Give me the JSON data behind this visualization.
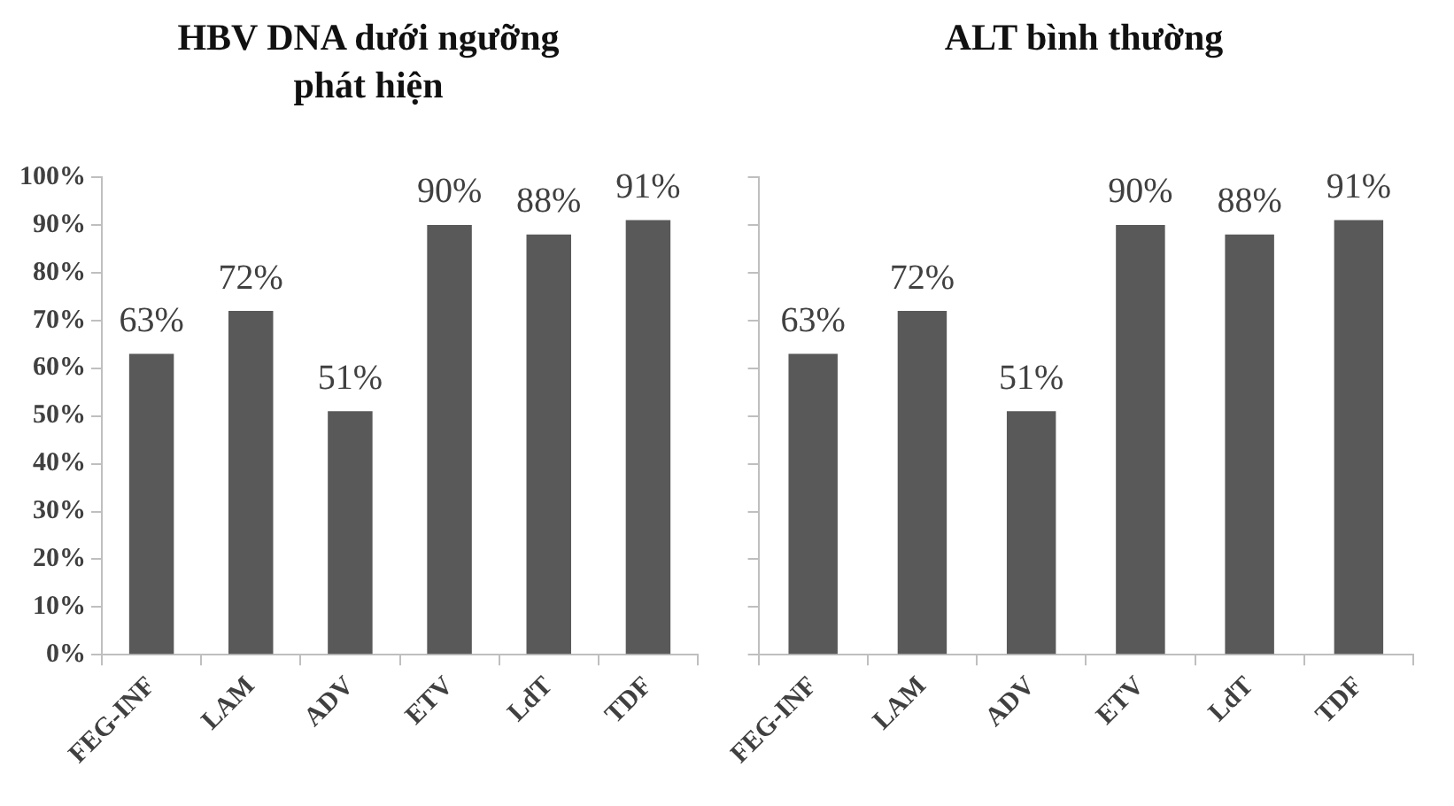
{
  "chart_data": [
    {
      "type": "bar",
      "title": "HBV DNA dưới ngưỡng phát hiện",
      "categories": [
        "FEG-INF",
        "LAM",
        "ADV",
        "ETV",
        "LdT",
        "TDF"
      ],
      "values": [
        63,
        72,
        51,
        90,
        88,
        91
      ],
      "value_labels": [
        "63%",
        "72%",
        "51%",
        "90%",
        "88%",
        "91%"
      ],
      "color": "#595959",
      "ylim": [
        0,
        100
      ],
      "yticks": [
        {
          "value": 0,
          "label": "0%"
        },
        {
          "value": 10,
          "label": "10%"
        },
        {
          "value": 20,
          "label": "20%"
        },
        {
          "value": 30,
          "label": "30%"
        },
        {
          "value": 40,
          "label": "40%"
        },
        {
          "value": 50,
          "label": "50%"
        },
        {
          "value": 60,
          "label": "60%"
        },
        {
          "value": 70,
          "label": "70%"
        },
        {
          "value": 80,
          "label": "80%"
        },
        {
          "value": 90,
          "label": "90%"
        },
        {
          "value": 100,
          "label": "100%"
        }
      ],
      "grid": false,
      "legend": false
    },
    {
      "type": "bar",
      "title": "ALT bình thường",
      "categories": [
        "FEG-INF",
        "LAM",
        "ADV",
        "ETV",
        "LdT",
        "TDF"
      ],
      "values": [
        63,
        72,
        51,
        90,
        88,
        91
      ],
      "value_labels": [
        "63%",
        "72%",
        "51%",
        "90%",
        "88%",
        "91%"
      ],
      "color": "#595959",
      "ylim": [
        0,
        100
      ],
      "yticks": [
        {
          "value": 0,
          "label": null
        },
        {
          "value": 10,
          "label": null
        },
        {
          "value": 20,
          "label": null
        },
        {
          "value": 30,
          "label": null
        },
        {
          "value": 40,
          "label": null
        },
        {
          "value": 50,
          "label": null
        },
        {
          "value": 60,
          "label": null
        },
        {
          "value": 70,
          "label": null
        },
        {
          "value": 80,
          "label": null
        },
        {
          "value": 90,
          "label": null
        },
        {
          "value": 100,
          "label": null
        }
      ],
      "tick_labels": "x",
      "grid": false,
      "legend": false
    }
  ]
}
